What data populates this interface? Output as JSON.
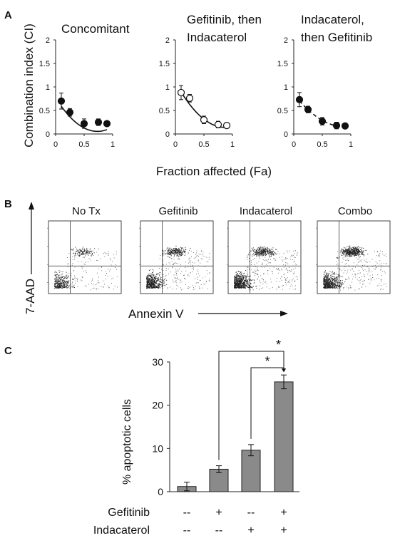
{
  "panels": {
    "a": {
      "letter": "A",
      "ylabel": "Combination index (CI)",
      "xlabel": "Fraction affected (Fa)"
    },
    "b": {
      "letter": "B",
      "ylabel": "7-AAD",
      "xlabel": "Annexin V",
      "plots": [
        {
          "title": "No Tx",
          "density": 0.25,
          "upper": 0.2
        },
        {
          "title": "Gefitinib",
          "density": 0.6,
          "upper": 0.5
        },
        {
          "title": "Indacaterol",
          "density": 0.8,
          "upper": 0.6
        },
        {
          "title": "Combo",
          "density": 0.7,
          "upper": 1.0
        }
      ]
    },
    "c": {
      "letter": "C",
      "significance": [
        "*",
        "*"
      ],
      "row_labels": [
        "Gefitinib",
        "Indacaterol"
      ]
    }
  },
  "chart_data": [
    {
      "type": "scatter",
      "title": "Concomitant",
      "x": [
        0.1,
        0.25,
        0.5,
        0.75,
        0.9
      ],
      "y": [
        0.7,
        0.46,
        0.22,
        0.25,
        0.22
      ],
      "err": [
        0.17,
        0.08,
        0.1,
        0.07,
        0.05
      ],
      "marker": "filled",
      "line": "solid",
      "fit": [
        0.77,
        -1.95,
        1.33
      ],
      "xlim": [
        0,
        1
      ],
      "ylim": [
        0,
        2
      ],
      "xticks": [
        "0",
        "0.5",
        "1"
      ],
      "yticks": [
        "0",
        "0.5",
        "1",
        "1.5",
        "2"
      ]
    },
    {
      "type": "scatter",
      "title": "Gefitinib, then Indacaterol",
      "x": [
        0.1,
        0.25,
        0.5,
        0.75,
        0.9
      ],
      "y": [
        0.88,
        0.76,
        0.3,
        0.2,
        0.18
      ],
      "err": [
        0.15,
        0.08,
        0.08,
        0.07,
        0.05
      ],
      "marker": "open",
      "line": "solid",
      "fit": [
        1.1,
        -2.2,
        1.26
      ],
      "xlim": [
        0,
        1
      ],
      "ylim": [
        0,
        2
      ],
      "xticks": [
        "0",
        "0.5",
        "1"
      ],
      "yticks": [
        "0",
        "0.5",
        "1",
        "1.5",
        "2"
      ]
    },
    {
      "type": "scatter",
      "title": "Indacaterol, then Gefitinib",
      "x": [
        0.1,
        0.25,
        0.5,
        0.75,
        0.9
      ],
      "y": [
        0.73,
        0.52,
        0.27,
        0.18,
        0.17
      ],
      "err": [
        0.15,
        0.07,
        0.08,
        0.07,
        0.05
      ],
      "marker": "filled",
      "line": "dashed",
      "fit": [
        0.85,
        -1.55,
        0.86
      ],
      "xlim": [
        0,
        1
      ],
      "ylim": [
        0,
        2
      ],
      "xticks": [
        "0",
        "0.5",
        "1"
      ],
      "yticks": [
        "0",
        "0.5",
        "1",
        "1.5",
        "2"
      ]
    },
    {
      "type": "bar",
      "ylabel": "% apoptotic cells",
      "ylim": [
        0,
        30
      ],
      "yticks": [
        "0",
        "10",
        "20",
        "30"
      ],
      "values": [
        1.2,
        5.2,
        9.6,
        25.4
      ],
      "err": [
        1.0,
        0.8,
        1.3,
        1.6
      ],
      "gefitinib": [
        "--",
        "+",
        "--",
        "+"
      ],
      "indacaterol": [
        "--",
        "--",
        "+",
        "+"
      ]
    }
  ]
}
